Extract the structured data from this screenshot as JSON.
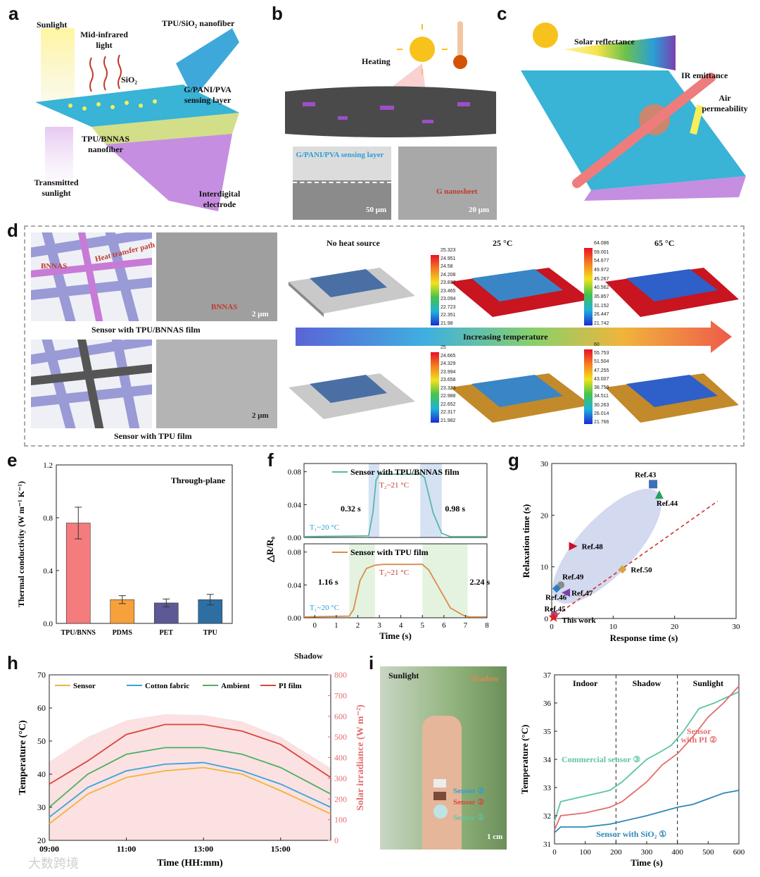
{
  "panels": {
    "a": {
      "letter": "a",
      "labels": {
        "sunlight": "Sunlight",
        "mid_ir": "Mid-infrared light",
        "tpu_sio2": "TPU/SiO₂ nanofiber",
        "sio2": "SiO₂",
        "sensing": "G/PANI/PVA sensing layer",
        "tpu_bnnas": "TPU/BNNAS nanofiber",
        "transmitted": "Transmitted sunlight",
        "electrode": "Interdigital electrode"
      }
    },
    "b": {
      "letter": "b",
      "labels": {
        "heating": "Heating",
        "sensing": "G/PANI/PVA sensing layer",
        "nanosheet": "G nanosheet",
        "scale1": "50 μm",
        "scale2": "20 μm"
      }
    },
    "c": {
      "letter": "c",
      "labels": {
        "solar": "Solar reflectance",
        "ir": "IR emittance",
        "air": "Air permeability"
      }
    },
    "d": {
      "letter": "d",
      "labels": {
        "bnnas": "BNNAS",
        "heat_path": "Heat transfer path",
        "bnnas_sem": "BNNAS",
        "scale_top": "2 μm",
        "scale_bot": "2 μm",
        "film1": "Sensor with TPU/BNNAS film",
        "film2": "Sensor with TPU film",
        "no_heat": "No heat source",
        "t25": "25 °C",
        "t65": "65 °C",
        "increasing": "Increasing temperature"
      },
      "colorbars": {
        "top25": [
          "25.323",
          "24.951",
          "24.58",
          "24.208",
          "23.837",
          "23.465",
          "23.094",
          "22.723",
          "22.351",
          "21.98"
        ],
        "top65": [
          "64.086",
          "59.001",
          "54.677",
          "49.972",
          "45.267",
          "40.562",
          "35.857",
          "31.152",
          "26.447",
          "21.742"
        ],
        "bot25": [
          "25",
          "24.665",
          "24.329",
          "23.994",
          "23.658",
          "23.323",
          "22.988",
          "22.652",
          "22.317",
          "21.982"
        ],
        "bot65": [
          "60",
          "55.753",
          "51.504",
          "47.255",
          "43.007",
          "38.759",
          "34.511",
          "30.263",
          "26.014",
          "21.766"
        ]
      }
    },
    "e": {
      "letter": "e",
      "annotation": "Through-plane"
    },
    "f": {
      "letter": "f",
      "ylabel": "△R/R₀",
      "top": {
        "legend": "Sensor with TPU/BNNAS film",
        "t1": "T₁~20 °C",
        "t2": "T₂~21 °C",
        "rise": "0.32 s",
        "fall": "0.98 s"
      },
      "bottom": {
        "legend": "Sensor with TPU film",
        "t1": "T₁~20 °C",
        "t2": "T₂~21 °C",
        "rise": "1.16 s",
        "fall": "2.24 s"
      }
    },
    "g": {
      "letter": "g"
    },
    "h": {
      "letter": "h",
      "shadow_label": "Shadow"
    },
    "i": {
      "letter": "i",
      "photo": {
        "sunlight": "Sunlight",
        "shadow": "Shadow",
        "s3": "Sensor ③",
        "s2": "Sensor ②",
        "s1": "Sensor ①",
        "scale": "1 cm"
      },
      "regions": [
        "Indoor",
        "Shadow",
        "Sunlight"
      ],
      "annotations": {
        "commercial": "Commercial sensor ③",
        "pi1": "Sensor",
        "pi2": "with PI ②",
        "sio2": "Sensor with SiO₂ ①"
      }
    }
  },
  "watermark": "大数跨境",
  "chart_data": [
    {
      "id": "e",
      "type": "bar",
      "categories": [
        "TPU/BNNS",
        "PDMS",
        "PET",
        "TPU"
      ],
      "values": [
        0.76,
        0.18,
        0.155,
        0.18
      ],
      "errors": [
        0.12,
        0.03,
        0.03,
        0.04
      ],
      "colors": [
        "#f47c7c",
        "#f6a13c",
        "#5b5a96",
        "#2e6fa3"
      ],
      "ylabel": "Thermal conductivity (W m⁻¹ K⁻¹)",
      "ylim": [
        0,
        1.2
      ],
      "yticks": [
        "0.0",
        "0.4",
        "0.8",
        "1.2"
      ]
    },
    {
      "id": "f",
      "type": "line",
      "xlabel": "Time (s)",
      "xlim": [
        -0.5,
        8
      ],
      "xticks": [
        "0",
        "1",
        "2",
        "3",
        "4",
        "5",
        "6",
        "7",
        "8"
      ],
      "ylim": [
        0,
        0.09
      ],
      "yticks": [
        "0.00",
        "0.04",
        "0.08"
      ],
      "series": [
        {
          "name": "Sensor with TPU/BNNAS film",
          "color": "#5ab7a4",
          "x": [
            -0.5,
            2.5,
            2.7,
            2.85,
            3.0,
            4.5,
            4.9,
            5.1,
            5.5,
            5.9,
            6.3,
            8.0
          ],
          "y": [
            0.001,
            0.002,
            0.03,
            0.07,
            0.077,
            0.077,
            0.077,
            0.073,
            0.03,
            0.005,
            0.001,
            0.001
          ]
        },
        {
          "name": "Sensor with TPU film",
          "color": "#d98c4c",
          "x": [
            -0.5,
            1.6,
            1.8,
            2.1,
            2.4,
            2.8,
            3.2,
            5.0,
            5.3,
            5.8,
            6.3,
            6.9,
            7.2,
            8.0
          ],
          "y": [
            0.001,
            0.002,
            0.01,
            0.045,
            0.06,
            0.064,
            0.065,
            0.065,
            0.058,
            0.035,
            0.012,
            0.003,
            0.001,
            0.001
          ]
        }
      ]
    },
    {
      "id": "g",
      "type": "scatter",
      "xlabel": "Response time (s)",
      "ylabel": "Relaxation time (s)",
      "xlim": [
        0,
        30
      ],
      "ylim": [
        0,
        30
      ],
      "xticks": [
        "0",
        "10",
        "20",
        "30"
      ],
      "yticks": [
        "0",
        "10",
        "20",
        "30"
      ],
      "points": [
        {
          "label": "Ref.43",
          "x": 16.5,
          "y": 26,
          "color": "#3d6fb6",
          "marker": "square"
        },
        {
          "label": "Ref.44",
          "x": 17.5,
          "y": 24,
          "color": "#27a060",
          "marker": "triangle"
        },
        {
          "label": "Ref.48",
          "x": 3.5,
          "y": 14,
          "color": "#c8102e",
          "marker": "triangle-right"
        },
        {
          "label": "Ref.50",
          "x": 11.5,
          "y": 9.5,
          "color": "#d9a441",
          "marker": "diamond"
        },
        {
          "label": "Ref.49",
          "x": 1.5,
          "y": 6.5,
          "color": "#8a8a8a",
          "marker": "pentagon"
        },
        {
          "label": "Ref.47",
          "x": 2.3,
          "y": 5.0,
          "color": "#7a3fb0",
          "marker": "triangle-left"
        },
        {
          "label": "Ref.46",
          "x": 0.8,
          "y": 5.8,
          "color": "#2d7dc1",
          "marker": "diamond"
        },
        {
          "label": "Ref.45",
          "x": 0.4,
          "y": 0.8,
          "color": "#a05090",
          "marker": "circle"
        },
        {
          "label": "This work",
          "x": 0.3,
          "y": 0.3,
          "color": "#e02020",
          "marker": "star"
        }
      ],
      "trend": {
        "x": [
          0,
          20
        ],
        "y": [
          0,
          16.5
        ],
        "x2": 20,
        "y2": 16.5
      }
    },
    {
      "id": "h",
      "type": "line",
      "xlabel": "Time (HH:mm)",
      "ylabel": "Temperature (°C)",
      "y2label": "Solar irradiance (W m⁻²)",
      "xticks": [
        "09:00",
        "11:00",
        "13:00",
        "15:00"
      ],
      "xlim": [
        9,
        16.3
      ],
      "ylim": [
        20,
        70
      ],
      "yticks": [
        "20",
        "30",
        "40",
        "50",
        "60",
        "70"
      ],
      "y2lim": [
        0,
        800
      ],
      "y2ticks": [
        "0",
        "100",
        "200",
        "300",
        "400",
        "500",
        "600",
        "700",
        "800"
      ],
      "series": [
        {
          "name": "Sensor",
          "color": "#f0b43c",
          "x": [
            9,
            10,
            11,
            12,
            13,
            14,
            15,
            16.3
          ],
          "y": [
            25,
            34,
            39,
            41,
            42,
            40,
            35,
            28
          ]
        },
        {
          "name": "Cotton fabric",
          "color": "#3aa3d8",
          "x": [
            9,
            10,
            11,
            12,
            13,
            14,
            15,
            16.3
          ],
          "y": [
            27,
            36,
            41,
            43,
            43.5,
            41,
            37,
            30
          ]
        },
        {
          "name": "Ambient",
          "color": "#4caf67",
          "x": [
            9,
            10,
            11,
            12,
            13,
            14,
            15,
            16.3
          ],
          "y": [
            30,
            40,
            46,
            48,
            48,
            46,
            42,
            34
          ]
        },
        {
          "name": "PI film",
          "color": "#d9453d",
          "x": [
            9,
            10,
            11,
            12,
            13,
            14,
            15,
            16.3
          ],
          "y": [
            37,
            44,
            52,
            55,
            55,
            53,
            49,
            39
          ]
        }
      ],
      "irradiance": {
        "x": [
          9,
          10,
          11,
          12,
          13,
          14,
          15,
          16.3
        ],
        "y": [
          380,
          500,
          580,
          610,
          605,
          575,
          500,
          350
        ]
      }
    },
    {
      "id": "i",
      "type": "line",
      "xlabel": "Time (s)",
      "ylabel": "Temperature (°C)",
      "xlim": [
        0,
        600
      ],
      "ylim": [
        31,
        37
      ],
      "xticks": [
        "0",
        "100",
        "200",
        "300",
        "400",
        "500",
        "600"
      ],
      "yticks": [
        "31",
        "32",
        "33",
        "34",
        "35",
        "36",
        "37"
      ],
      "dividers": [
        200,
        400
      ],
      "series": [
        {
          "name": "Commercial sensor ③",
          "color": "#5ec4a0",
          "x": [
            0,
            20,
            100,
            180,
            220,
            300,
            350,
            380,
            420,
            470,
            520,
            560,
            600
          ],
          "y": [
            31.8,
            32.5,
            32.7,
            32.9,
            33.2,
            34.0,
            34.3,
            34.5,
            35.0,
            35.8,
            36.0,
            36.2,
            36.4
          ]
        },
        {
          "name": "Sensor with PI ②",
          "color": "#e46d6d",
          "x": [
            0,
            20,
            100,
            180,
            220,
            300,
            350,
            400,
            450,
            500,
            550,
            600
          ],
          "y": [
            31.5,
            32.0,
            32.1,
            32.3,
            32.5,
            33.2,
            33.8,
            34.2,
            34.8,
            35.5,
            36.0,
            36.6
          ]
        },
        {
          "name": "Sensor with SiO₂ ①",
          "color": "#2e87b5",
          "x": [
            0,
            20,
            100,
            180,
            220,
            300,
            400,
            450,
            500,
            550,
            600
          ],
          "y": [
            31.4,
            31.6,
            31.6,
            31.7,
            31.8,
            32.0,
            32.3,
            32.4,
            32.6,
            32.8,
            32.9
          ]
        }
      ]
    }
  ]
}
